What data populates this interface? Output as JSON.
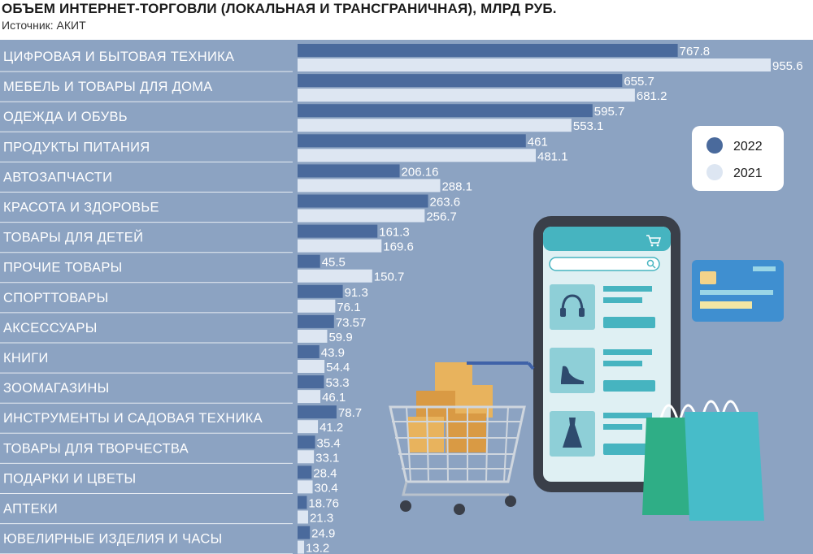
{
  "header": {
    "title": "ОБЪЕМ ИНТЕРНЕТ-ТОРГОВЛИ (ЛОКАЛЬНАЯ И ТРАНСГРАНИЧНАЯ), МЛРД РУБ.",
    "source": "Источник: АКИТ"
  },
  "colors": {
    "background": "#8ca3c2",
    "bar_2022": "#4a6a9c",
    "bar_2021": "#dde6f2",
    "legend_box": "#ffffff"
  },
  "chart_data": {
    "type": "bar",
    "orientation": "horizontal",
    "title": "ОБЪЕМ ИНТЕРНЕТ-ТОРГОВЛИ (ЛОКАЛЬНАЯ И ТРАНСГРАНИЧНАЯ), МЛРД РУБ.",
    "subtitle": "Источник: АКИТ",
    "categories": [
      "ЦИФРОВАЯ И БЫТОВАЯ ТЕХНИКА",
      "МЕБЕЛЬ И ТОВАРЫ ДЛЯ ДОМА",
      "ОДЕЖДА И ОБУВЬ",
      "ПРОДУКТЫ ПИТАНИЯ",
      "АВТОЗАПЧАСТИ",
      "КРАСОТА И ЗДОРОВЬЕ",
      "ТОВАРЫ ДЛЯ ДЕТЕЙ",
      "ПРОЧИЕ ТОВАРЫ",
      "СПОРТТОВАРЫ",
      "АКСЕССУАРЫ",
      "КНИГИ",
      "ЗООМАГАЗИНЫ",
      "ИНСТРУМЕНТЫ И САДОВАЯ ТЕХНИКА",
      "ТОВАРЫ ДЛЯ ТВОРЧЕСТВА",
      "ПОДАРКИ И ЦВЕТЫ",
      "АПТЕКИ",
      "ЮВЕЛИРНЫЕ ИЗДЕЛИЯ И ЧАСЫ"
    ],
    "series": [
      {
        "name": "2022",
        "values": [
          767.8,
          655.7,
          595.7,
          461,
          206.16,
          263.6,
          161.3,
          45.5,
          91.3,
          73.57,
          43.9,
          53.3,
          78.7,
          35.4,
          28.4,
          18.76,
          24.9
        ],
        "labels": [
          "767.8",
          "655.7",
          "595.7",
          "461",
          "206.16",
          "263.6",
          "161.3",
          "45.5",
          "91.3",
          "73.57",
          "43.9",
          "53.3",
          "78.7",
          "35.4",
          "28.4",
          "18.76",
          "24.9"
        ]
      },
      {
        "name": "2021",
        "values": [
          955.6,
          681.2,
          553.1,
          481.1,
          288.1,
          256.7,
          169.6,
          150.7,
          76.1,
          59.9,
          54.4,
          46.1,
          41.2,
          33.1,
          30.4,
          21.3,
          13.2
        ],
        "labels": [
          "955.6",
          "681.2",
          "553.1",
          "481.1",
          "288.1",
          "256.7",
          "169.6",
          "150.7",
          "76.1",
          "59.9",
          "54.4",
          "46.1",
          "41.2",
          "33.1",
          "30.4",
          "21.3",
          "13.2"
        ]
      }
    ],
    "xlim": [
      0,
      955.6
    ],
    "grid": false,
    "legend_position": "right"
  }
}
